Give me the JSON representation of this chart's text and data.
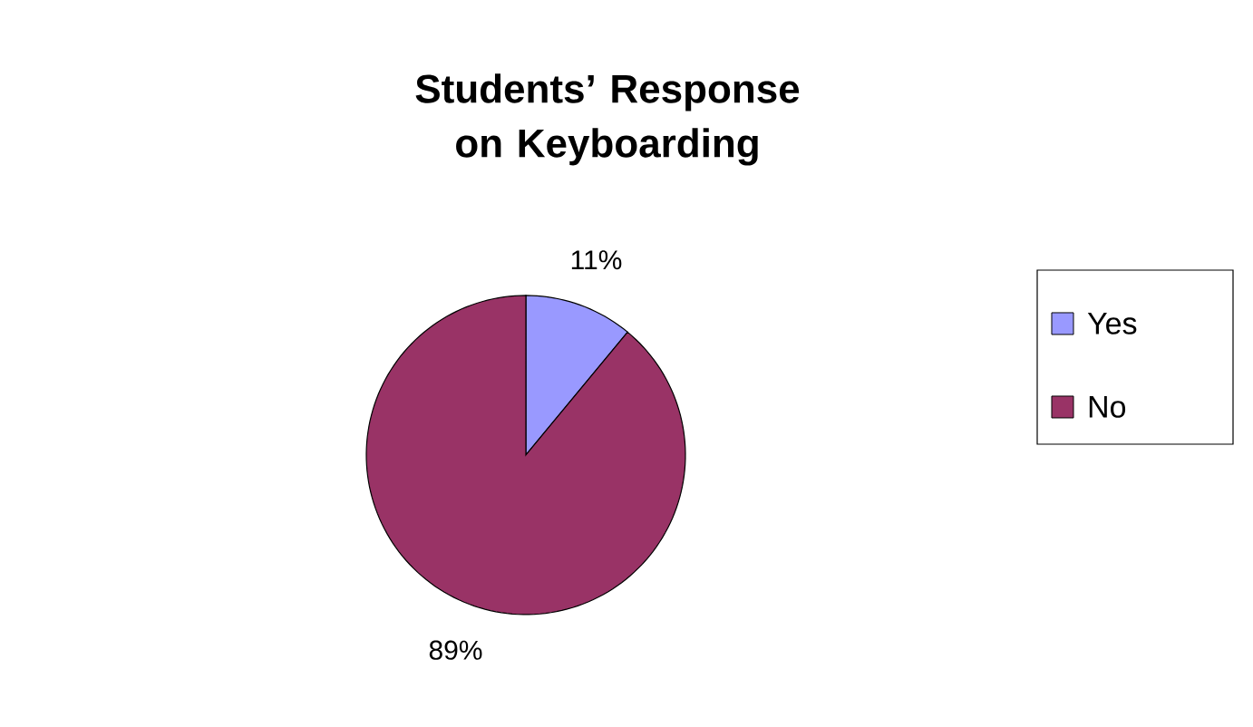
{
  "chart_data": {
    "type": "pie",
    "title": "Students’ Response on Keyboarding",
    "categories": [
      "Yes",
      "No"
    ],
    "values": [
      11,
      89
    ],
    "colors": [
      "#9999ff",
      "#993366"
    ],
    "value_labels": [
      "11%",
      "89%"
    ],
    "legend": "right"
  }
}
